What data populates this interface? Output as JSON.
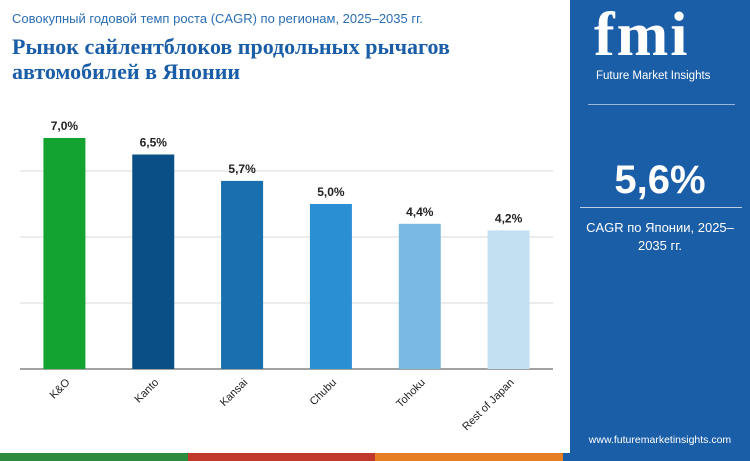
{
  "header": {
    "subtitle": "Совокупный годовой темп роста (CAGR) по регионам, 2025–2035 гг.",
    "title": "Рынок сайлентблоков продольных рычагов автомобилей в Японии"
  },
  "sidebar": {
    "logo_letters": "fmi",
    "logo_text": "Future Market Insights",
    "kpi_value": "5,6%",
    "kpi_label": "CAGR по Японии, 2025–2035 гг.",
    "url": "www.futuremarketinsights.com",
    "background": "#1b5ea8"
  },
  "bottom_bar_colors": [
    "#2e8b3d",
    "#c0392b",
    "#e67e22",
    "#1b5ea8"
  ],
  "chart_data": {
    "type": "bar",
    "categories": [
      "K&O",
      "Kanto",
      "Kansai",
      "Chubu",
      "Tohoku",
      "Rest of Japan"
    ],
    "values": [
      7.0,
      6.5,
      5.7,
      5.0,
      4.4,
      4.2
    ],
    "value_labels": [
      "7,0%",
      "6,5%",
      "5,7%",
      "5,0%",
      "4,4%",
      "4,2%"
    ],
    "colors": [
      "#12a330",
      "#0a4f86",
      "#1a6fae",
      "#2b8fd4",
      "#7ab9e2",
      "#c3e0f3"
    ],
    "ylim": [
      0,
      8
    ],
    "grid": true,
    "legend": "none"
  }
}
